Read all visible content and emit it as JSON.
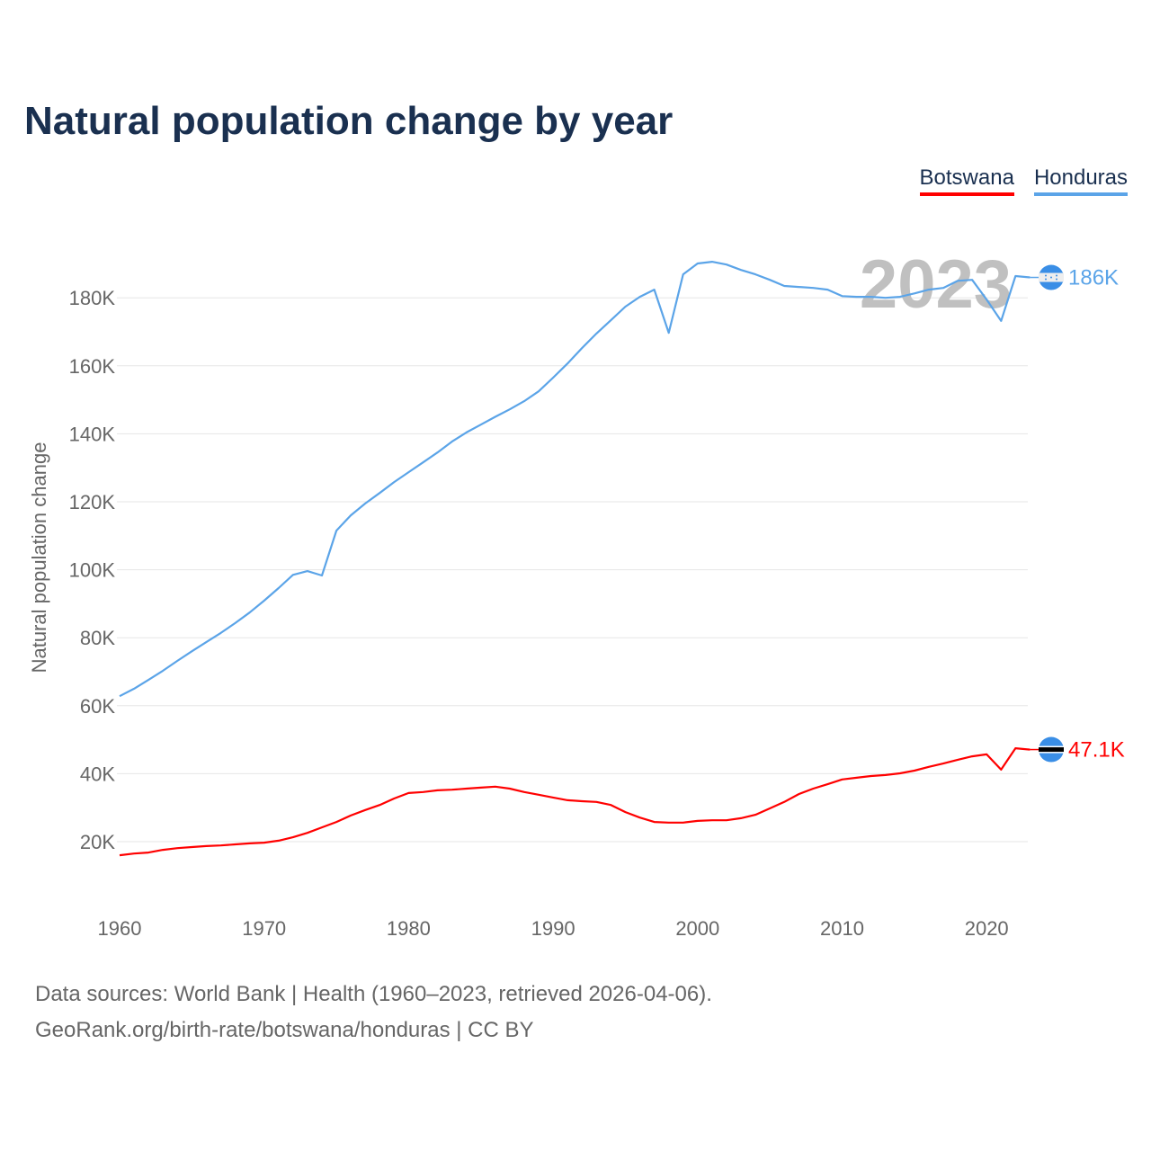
{
  "title": "Natural population change by year",
  "footer": {
    "line1": "Data sources: World Bank | Health (1960–2023, retrieved 2026-04-06).",
    "line2": "GeoRank.org/birth-rate/botswana/honduras | CC BY"
  },
  "chart_data": {
    "type": "line",
    "title": "Natural population change by year",
    "xlabel": "",
    "ylabel": "Natural population change",
    "year_watermark": "2023",
    "xlim": [
      1960,
      2023
    ],
    "ylim": [
      0,
      200000
    ],
    "x_ticks": [
      1960,
      1970,
      1980,
      1990,
      2000,
      2010,
      2020
    ],
    "y_ticks": [
      20000,
      40000,
      60000,
      80000,
      100000,
      120000,
      140000,
      160000,
      180000
    ],
    "y_tick_labels": [
      "20K",
      "40K",
      "60K",
      "80K",
      "100K",
      "120K",
      "140K",
      "160K",
      "180K"
    ],
    "grid": true,
    "legend_position": "top-right",
    "x": [
      1960,
      1961,
      1962,
      1963,
      1964,
      1965,
      1966,
      1967,
      1968,
      1969,
      1970,
      1971,
      1972,
      1973,
      1974,
      1975,
      1976,
      1977,
      1978,
      1979,
      1980,
      1981,
      1982,
      1983,
      1984,
      1985,
      1986,
      1987,
      1988,
      1989,
      1990,
      1991,
      1992,
      1993,
      1994,
      1995,
      1996,
      1997,
      1998,
      1999,
      2000,
      2001,
      2002,
      2003,
      2004,
      2005,
      2006,
      2007,
      2008,
      2009,
      2010,
      2011,
      2012,
      2013,
      2014,
      2015,
      2016,
      2017,
      2018,
      2019,
      2020,
      2021,
      2022,
      2023
    ],
    "series": [
      {
        "name": "Botswana",
        "color": "#ff0000",
        "end_label": "47.1K",
        "flag": "botswana-flag",
        "values": [
          16000,
          16500,
          16800,
          17600,
          18100,
          18400,
          18700,
          18900,
          19200,
          19500,
          19700,
          20300,
          21300,
          22600,
          24200,
          25800,
          27700,
          29300,
          30800,
          32700,
          34300,
          34600,
          35100,
          35300,
          35600,
          35900,
          36200,
          35600,
          34600,
          33800,
          33000,
          32200,
          31900,
          31700,
          30800,
          28700,
          27100,
          25800,
          25600,
          25600,
          26100,
          26300,
          26300,
          26900,
          27900,
          29800,
          31700,
          34000,
          35600,
          36900,
          38300,
          38800,
          39300,
          39600,
          40100,
          40900,
          42000,
          43000,
          44100,
          45100,
          45700,
          41200,
          47500,
          47100
        ]
      },
      {
        "name": "Honduras",
        "color": "#5ba4e8",
        "end_label": "186K",
        "flag": "honduras-flag",
        "values": [
          62800,
          65000,
          67600,
          70300,
          73200,
          76000,
          78700,
          81400,
          84300,
          87400,
          90900,
          94600,
          98500,
          99600,
          98300,
          111500,
          116000,
          119500,
          122600,
          125800,
          128700,
          131600,
          134500,
          137700,
          140400,
          142700,
          145000,
          147200,
          149600,
          152500,
          156500,
          160700,
          165200,
          169500,
          173400,
          177400,
          180300,
          182400,
          169700,
          186900,
          190100,
          190600,
          189800,
          188200,
          186900,
          185300,
          183500,
          183200,
          182900,
          182400,
          180500,
          180300,
          180300,
          180000,
          180300,
          181300,
          182400,
          182900,
          185000,
          185300,
          179500,
          173200,
          186400,
          186000
        ]
      }
    ]
  }
}
